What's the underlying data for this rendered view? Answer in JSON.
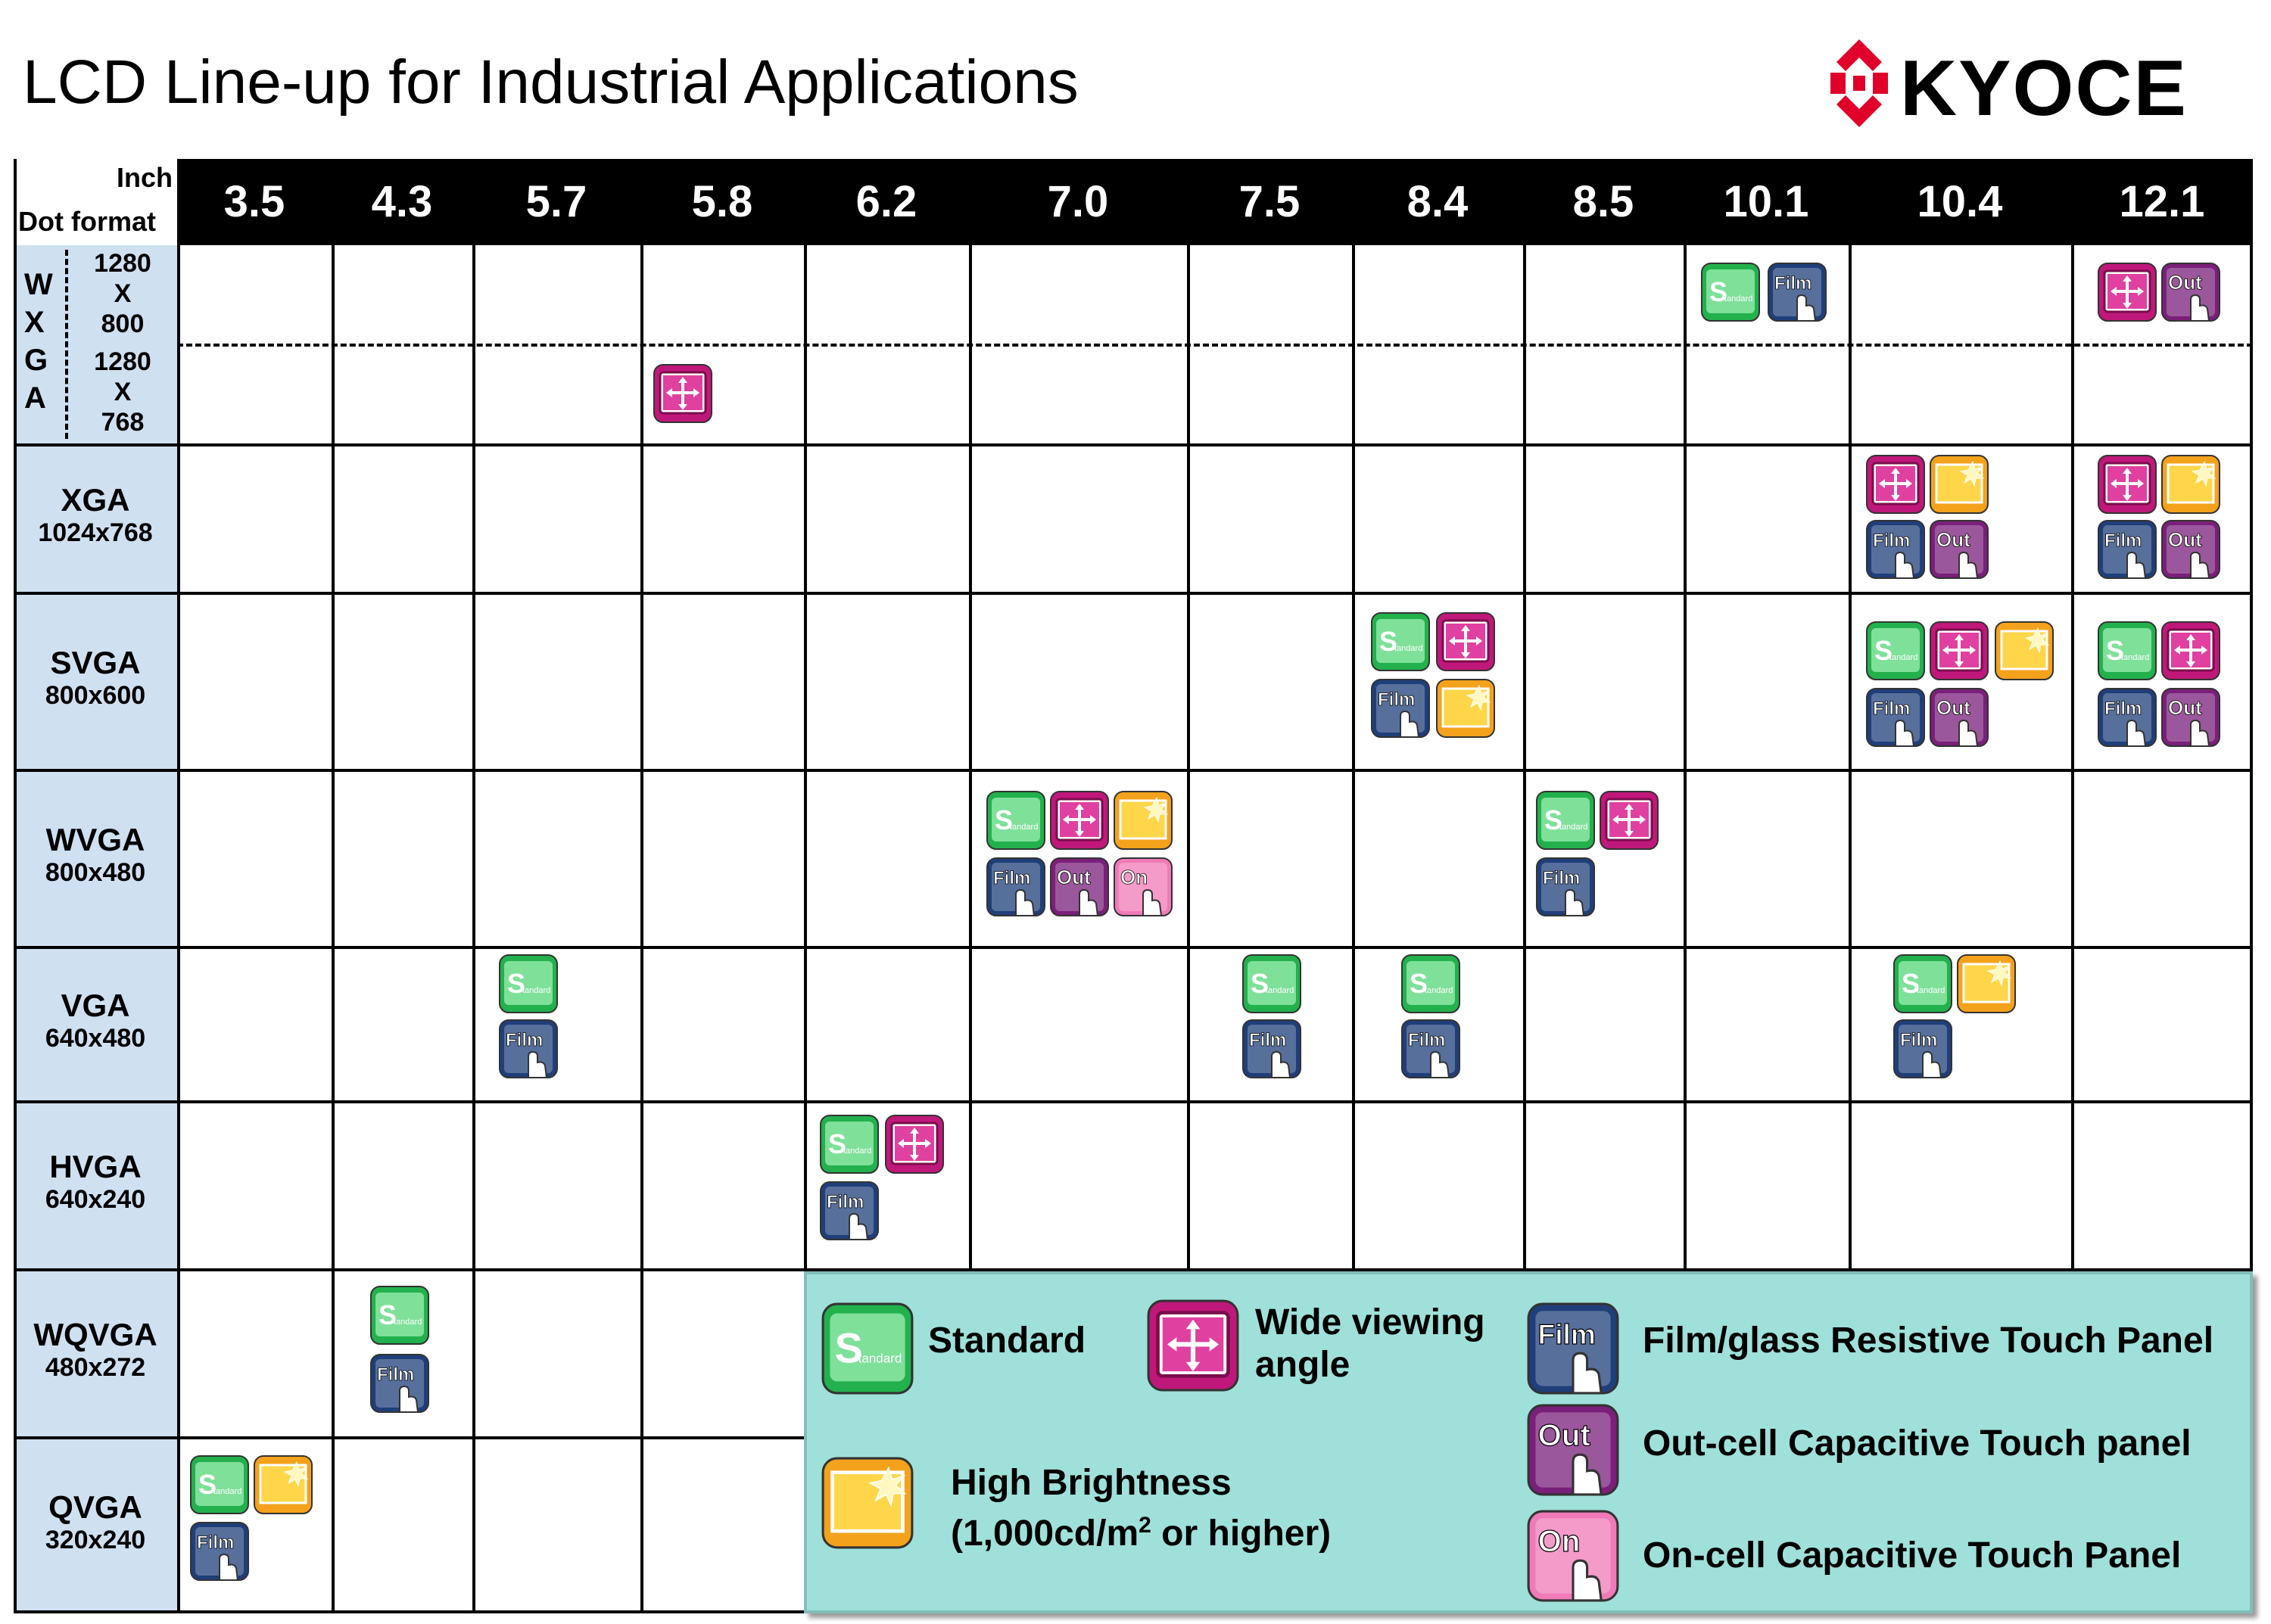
{
  "title": "LCD Line-up for Industrial Applications",
  "brand": {
    "name": "KYOCERA",
    "mark_color": "#e0002a"
  },
  "corner": {
    "top": "Inch",
    "bottom": "Dot format"
  },
  "inches": [
    "3.5",
    "4.3",
    "5.7",
    "5.8",
    "6.2",
    "7.0",
    "7.5",
    "8.4",
    "8.5",
    "10.1",
    "10.4",
    "12.1"
  ],
  "wxga": {
    "letters": [
      "W",
      "X",
      "G",
      "A"
    ],
    "res1": [
      "1280",
      "X",
      "800"
    ],
    "res2": [
      "1280",
      "X",
      "768"
    ]
  },
  "rows": [
    {
      "name": "XGA",
      "dots": "1024x768"
    },
    {
      "name": "SVGA",
      "dots": "800x600"
    },
    {
      "name": "WVGA",
      "dots": "800x480"
    },
    {
      "name": "VGA",
      "dots": "640x480"
    },
    {
      "name": "HVGA",
      "dots": "640x240"
    },
    {
      "name": "WQVGA",
      "dots": "480x272"
    },
    {
      "name": "QVGA",
      "dots": "320x240"
    }
  ],
  "badge_text": {
    "standard_s": "S",
    "standard_rest": "tandard",
    "film": "Film",
    "out": "Out",
    "on": "On"
  },
  "legend": {
    "standard": "Standard",
    "wide_line1": "Wide viewing",
    "wide_line2": "angle",
    "film": "Film/glass Resistive Touch Panel",
    "out": "Out-cell Capacitive Touch panel",
    "on": "On-cell Capacitive Touch Panel",
    "bright_line1": "High Brightness",
    "bright_line2_a": "(1,000cd/m",
    "bright_line2_sup": "2",
    "bright_line2_b": " or higher)"
  },
  "availability": [
    {
      "row": "WXGA 1280x800",
      "inch": "10.1",
      "features": [
        "standard",
        "film"
      ]
    },
    {
      "row": "WXGA 1280x800",
      "inch": "12.1",
      "features": [
        "wide",
        "out"
      ]
    },
    {
      "row": "WXGA 1280x768",
      "inch": "5.8",
      "features": [
        "wide"
      ]
    },
    {
      "row": "XGA",
      "inch": "10.4",
      "features": [
        "wide",
        "bright",
        "film",
        "out"
      ]
    },
    {
      "row": "XGA",
      "inch": "12.1",
      "features": [
        "wide",
        "bright",
        "film",
        "out"
      ]
    },
    {
      "row": "SVGA",
      "inch": "8.4",
      "features": [
        "standard",
        "wide",
        "film",
        "bright"
      ]
    },
    {
      "row": "SVGA",
      "inch": "10.4",
      "features": [
        "standard",
        "wide",
        "bright",
        "film",
        "out"
      ]
    },
    {
      "row": "SVGA",
      "inch": "12.1",
      "features": [
        "standard",
        "wide",
        "film",
        "out"
      ]
    },
    {
      "row": "WVGA",
      "inch": "7.0",
      "features": [
        "standard",
        "wide",
        "bright",
        "film",
        "out",
        "on"
      ]
    },
    {
      "row": "WVGA",
      "inch": "8.5",
      "features": [
        "standard",
        "wide",
        "film"
      ]
    },
    {
      "row": "VGA",
      "inch": "5.7",
      "features": [
        "standard",
        "film"
      ]
    },
    {
      "row": "VGA",
      "inch": "7.5",
      "features": [
        "standard",
        "film"
      ]
    },
    {
      "row": "VGA",
      "inch": "8.4",
      "features": [
        "standard",
        "film"
      ]
    },
    {
      "row": "VGA",
      "inch": "10.4",
      "features": [
        "standard",
        "bright",
        "film"
      ]
    },
    {
      "row": "HVGA",
      "inch": "6.2",
      "features": [
        "standard",
        "wide",
        "film"
      ]
    },
    {
      "row": "WQVGA",
      "inch": "4.3",
      "features": [
        "standard",
        "film"
      ]
    },
    {
      "row": "QVGA",
      "inch": "3.5",
      "features": [
        "standard",
        "bright",
        "film"
      ]
    }
  ],
  "colors": {
    "header_bg": "#000000",
    "rowhead_bg": "#cfe0f1",
    "legend_bg": "#9fe0da",
    "standard": "#22b14c",
    "wide": "#c0187a",
    "bright": "#f4a21c",
    "film": "#1f3f7a",
    "out": "#7a1f7a",
    "on": "#f07ab8"
  }
}
